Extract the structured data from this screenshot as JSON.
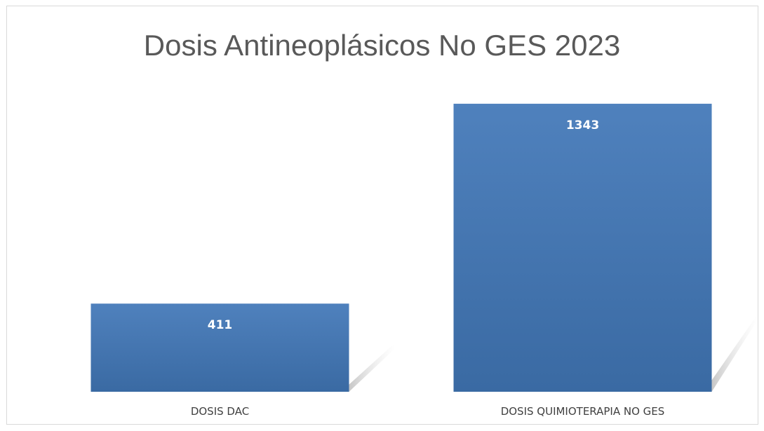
{
  "chart_data": {
    "type": "bar",
    "title": "Dosis Antineoplásicos No GES 2023",
    "categories": [
      "DOSIS DAC",
      "DOSIS QUIMIOTERAPIA NO GES"
    ],
    "values": [
      411,
      1343
    ],
    "ylim": [
      0,
      1500
    ],
    "grid": false,
    "data_labels": true,
    "colors": {
      "bar_top": "#4f81bd",
      "bar_bottom": "#3a6aa3",
      "shadow": "#bfbfbf",
      "title": "#595959",
      "axis_text": "#404040"
    }
  }
}
